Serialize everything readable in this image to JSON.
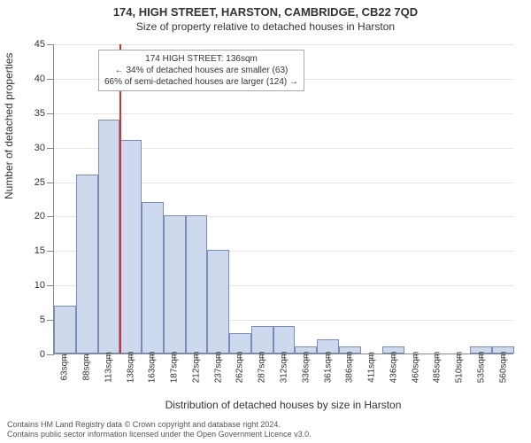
{
  "title_line1": "174, HIGH STREET, HARSTON, CAMBRIDGE, CB22 7QD",
  "title_line2": "Size of property relative to detached houses in Harston",
  "chart": {
    "type": "histogram",
    "x_categories": [
      "63sqm",
      "88sqm",
      "113sqm",
      "138sqm",
      "163sqm",
      "187sqm",
      "212sqm",
      "237sqm",
      "262sqm",
      "287sqm",
      "312sqm",
      "336sqm",
      "361sqm",
      "386sqm",
      "411sqm",
      "436sqm",
      "460sqm",
      "485sqm",
      "510sqm",
      "535sqm",
      "560sqm"
    ],
    "values": [
      7,
      26,
      34,
      31,
      22,
      20,
      20,
      15,
      3,
      4,
      4,
      1,
      2,
      1,
      0,
      1,
      0,
      0,
      0,
      1,
      1
    ],
    "ylim": [
      0,
      45
    ],
    "ytick_step": 5,
    "bar_fill": "#cfd9ee",
    "bar_stroke": "#7a8db8",
    "grid_color": "#e5e5e5",
    "axis_color": "#888888",
    "background_color": "#ffffff",
    "label_fontsize": 11,
    "tick_fontsize": 10,
    "marker": {
      "bin_index_left_edge": 3,
      "color": "#d33333",
      "annotation": {
        "line1": "174 HIGH STREET: 136sqm",
        "line2": "← 34% of detached houses are smaller (63)",
        "line3": "66% of semi-detached houses are larger (124) →"
      }
    },
    "y_axis_title": "Number of detached properties",
    "x_axis_title": "Distribution of detached houses by size in Harston"
  },
  "footer": {
    "line1": "Contains HM Land Registry data © Crown copyright and database right 2024.",
    "line2": "Contains public sector information licensed under the Open Government Licence v3.0."
  }
}
